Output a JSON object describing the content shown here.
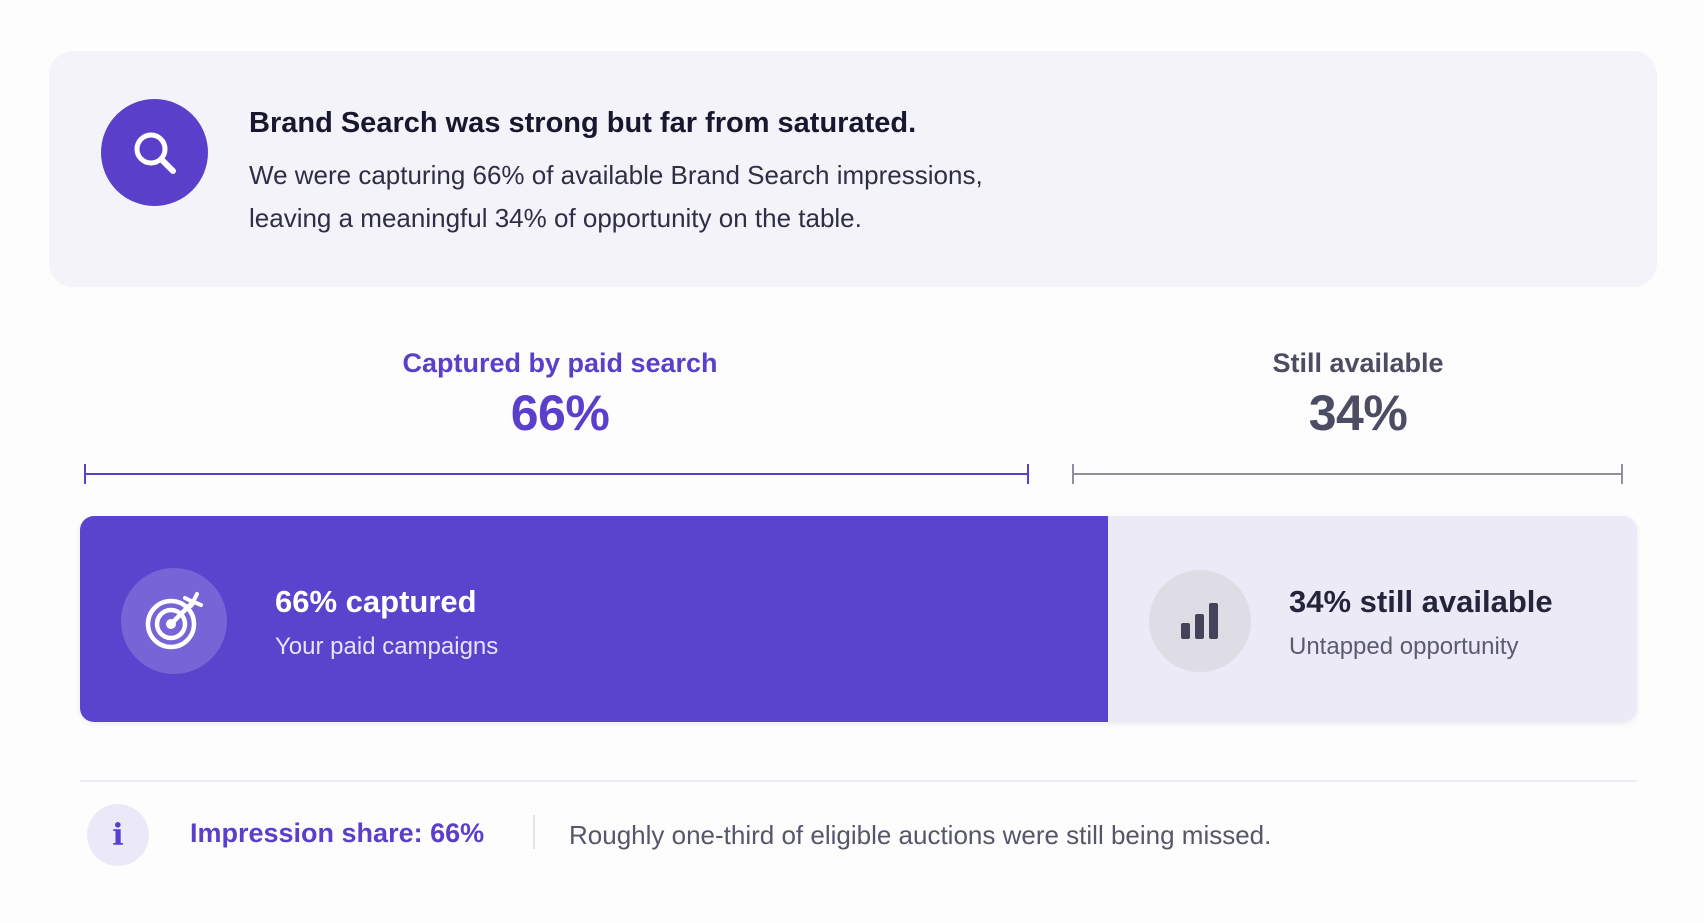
{
  "insight": {
    "icon": "search-icon",
    "title": "Brand Search was strong but far from saturated.",
    "body_line1": "We were capturing 66% of available Brand Search impressions,",
    "body_line2": "leaving a meaningful 34% of opportunity on the table."
  },
  "captured": {
    "header_label": "Captured by paid search",
    "header_value": "66%",
    "share": 0.66,
    "icon": "target-icon",
    "title": "66% captured",
    "subtitle": "Your paid campaigns",
    "color": "#5a43cd"
  },
  "available": {
    "header_label": "Still available",
    "header_value": "34%",
    "share": 0.34,
    "icon": "bar-chart-icon",
    "title": "34% still available",
    "subtitle": "Untapped opportunity",
    "color": "#eceaf6"
  },
  "footer": {
    "icon": "info-icon",
    "info_glyph": "i",
    "impression_share": "Impression share: 66%",
    "note": "Roughly one-third of eligible auctions were still being missed."
  },
  "colors": {
    "accent": "#5a3fcb",
    "muted": "#4c4d62",
    "card_background": "#f4f3f9"
  }
}
